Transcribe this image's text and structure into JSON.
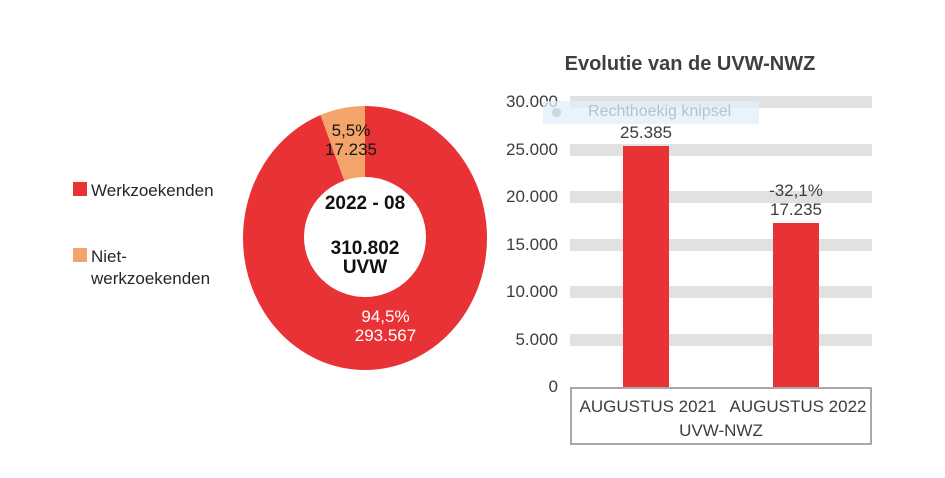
{
  "colors": {
    "red": "#e93235",
    "orange": "#f2a46b",
    "band_gray": "#e1e1e1",
    "text": "#3d3d3d",
    "title_text": "#3f3f3f",
    "axis_border": "#a8a8a8"
  },
  "legend": {
    "items": [
      {
        "lines": [
          "Werkzoekenden"
        ],
        "color": "#e93235"
      },
      {
        "lines": [
          "Niet-",
          "werkzoekenden"
        ],
        "color": "#f2a46b"
      }
    ]
  },
  "snip_overlay": {
    "label": "Rechthoekig knipsel"
  },
  "chart_data": [
    {
      "type": "pie",
      "subtype": "donut",
      "center_labels": [
        "2022 - 08",
        "310.802",
        "UVW"
      ],
      "slices": [
        {
          "name": "Werkzoekenden",
          "value": 293567,
          "pct_label": "94,5%",
          "value_label": "293.567",
          "color": "#e93235"
        },
        {
          "name": "Niet-werkzoekenden",
          "value": 17235,
          "pct_label": "5,5%",
          "value_label": "17.235",
          "color": "#f2a46b"
        }
      ],
      "legend_position": "left"
    },
    {
      "type": "bar",
      "title": "Evolutie van de UVW-NWZ",
      "categories": [
        "AUGUSTUS 2021",
        "AUGUSTUS 2022"
      ],
      "values": [
        25385,
        17235
      ],
      "bar_labels": [
        [
          "25.385"
        ],
        [
          "-32,1%",
          "17.235"
        ]
      ],
      "xlabel": "UVW-NWZ",
      "ylim": [
        0,
        30000
      ],
      "yticks": [
        {
          "value": 30000,
          "label": "30.000"
        },
        {
          "value": 25000,
          "label": "25.000"
        },
        {
          "value": 20000,
          "label": "20.000"
        },
        {
          "value": 15000,
          "label": "15.000"
        },
        {
          "value": 10000,
          "label": "10.000"
        },
        {
          "value": 5000,
          "label": "5.000"
        },
        {
          "value": 0,
          "label": "0"
        }
      ],
      "bar_color": "#e93235",
      "grid": "horizontal-bands",
      "legend_position": "none"
    }
  ]
}
